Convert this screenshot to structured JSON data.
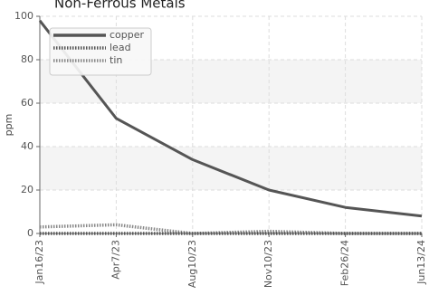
{
  "chart_data": {
    "type": "line",
    "title": "Non-Ferrous Metals",
    "ylabel": "ppm",
    "xlabel": "",
    "x": [
      "Jan16/23",
      "Apr7/23",
      "Aug10/23",
      "Nov10/23",
      "Feb26/24",
      "Jun13/24"
    ],
    "ylim": [
      0,
      100
    ],
    "yticks": [
      0,
      20,
      40,
      60,
      80,
      100
    ],
    "grid": true,
    "legend_position": "top-left",
    "series": [
      {
        "name": "copper",
        "values": [
          98,
          53,
          34,
          20,
          12,
          8
        ],
        "color": "#555555",
        "style": "solid"
      },
      {
        "name": "lead",
        "values": [
          0,
          0,
          0,
          0,
          0,
          0
        ],
        "color": "#555555",
        "style": "dotted"
      },
      {
        "name": "tin",
        "values": [
          3,
          4,
          0,
          1,
          0,
          0
        ],
        "color": "#888888",
        "style": "dotted"
      }
    ]
  }
}
